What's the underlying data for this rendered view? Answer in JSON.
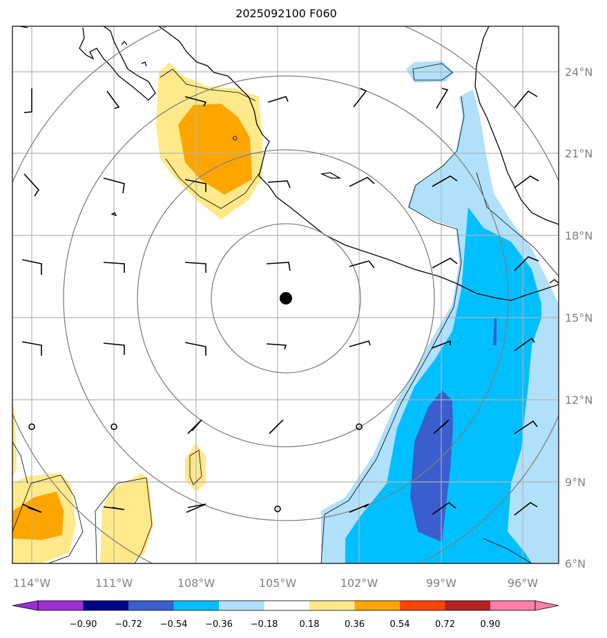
{
  "title": "2025092100 F060",
  "map": {
    "lon_labels": [
      "114°W",
      "111°W",
      "108°W",
      "105°W",
      "102°W",
      "99°W",
      "96°W"
    ],
    "lat_labels": [
      "24°N",
      "21°N",
      "18°N",
      "15°N",
      "12°N",
      "9°N",
      "6°N"
    ],
    "storm_center": {
      "lon": -104.7,
      "lat": 15.7
    },
    "range_rings": 4
  },
  "colorbar": {
    "labels": [
      "−0.90",
      "−0.72",
      "−0.54",
      "−0.36",
      "−0.18",
      "0.18",
      "0.36",
      "0.54",
      "0.72",
      "0.90"
    ],
    "colors": [
      "#9b30d0",
      "#00008b",
      "#3a5fcd",
      "#00bfff",
      "#b0e0fa",
      "#ffffff",
      "#ffe98a",
      "#ffa500",
      "#ff4500",
      "#b22222",
      "#ff80aa"
    ]
  },
  "field_colors": {
    "neg_light": "#b0e0fa",
    "neg_mid": "#00bfff",
    "neg_dark": "#3a5fcd",
    "pos_light": "#ffe98a",
    "pos_mid": "#ffa500"
  }
}
